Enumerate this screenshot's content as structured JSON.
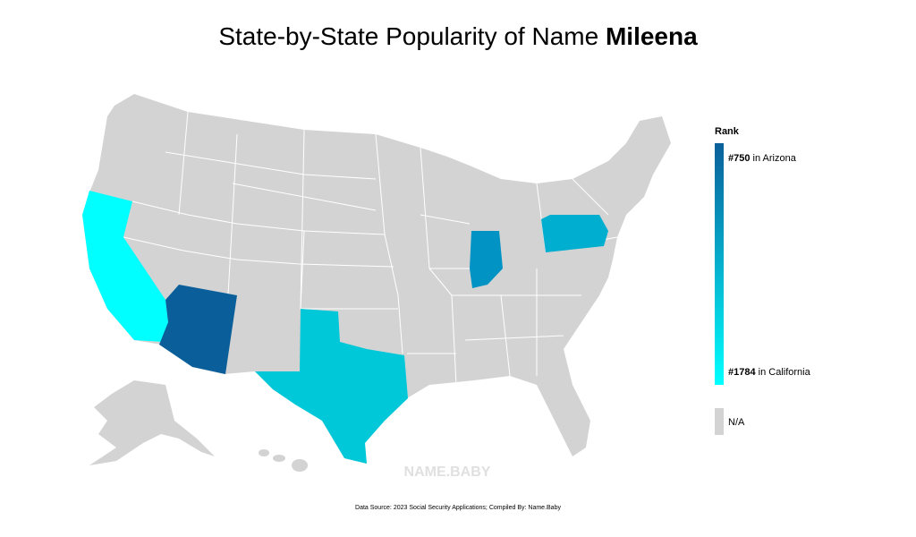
{
  "header": {
    "title": "State-by-State Popularity of Name ",
    "name": "Mileena"
  },
  "legend": {
    "title": "Rank",
    "top": {
      "rank": "#750",
      "text": " in Arizona",
      "color": "#0a5f9a"
    },
    "bottom": {
      "rank": "#1784",
      "text": " in California",
      "color": "#00ffff"
    },
    "na": {
      "text": "N/A",
      "color": "#d3d3d3"
    }
  },
  "watermark": "NAME.BABY",
  "footer": "Data Source: 2023 Social Security Applications; Compiled By: Name.Baby"
}
